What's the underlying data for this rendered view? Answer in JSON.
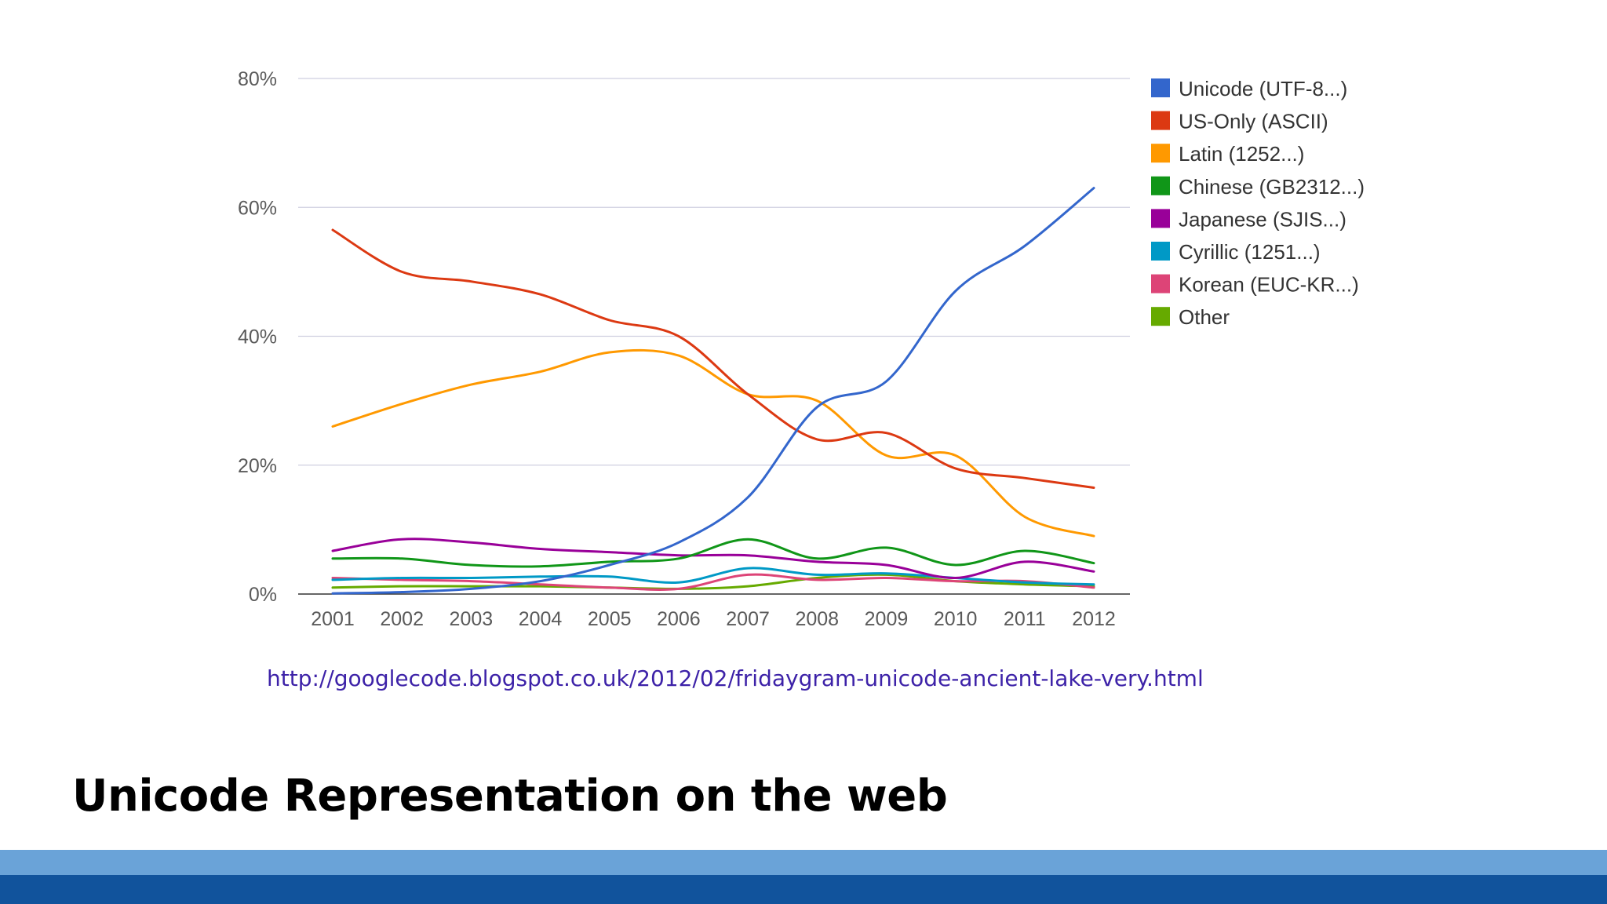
{
  "slide": {
    "title": "Unicode Representation on the web",
    "source_url": "http://googlecode.blogspot.co.uk/2012/02/fridaygram-unicode-ancient-lake-very.html",
    "colors": {
      "band_light": "#6aa3d8",
      "band_dark": "#11539c",
      "link": "#3d22a8"
    }
  },
  "chart_data": {
    "type": "line",
    "title": "",
    "xlabel": "",
    "ylabel": "",
    "categories": [
      "2001",
      "2002",
      "2003",
      "2004",
      "2005",
      "2006",
      "2007",
      "2008",
      "2009",
      "2010",
      "2011",
      "2012"
    ],
    "x": [
      2001,
      2002,
      2003,
      2004,
      2005,
      2006,
      2007,
      2008,
      2009,
      2010,
      2011,
      2012
    ],
    "ylim": [
      0,
      80
    ],
    "y_ticks": [
      0,
      20,
      40,
      60,
      80
    ],
    "y_tick_labels": [
      "0%",
      "20%",
      "40%",
      "60%",
      "80%"
    ],
    "grid": true,
    "legend_position": "right",
    "series": [
      {
        "name": "Unicode (UTF-8...)",
        "color": "#3366cc",
        "values": [
          0.1,
          0.3,
          0.8,
          2.0,
          4.5,
          8.0,
          15.0,
          29.0,
          33.0,
          47.0,
          54.0,
          63.0
        ]
      },
      {
        "name": "US-Only (ASCII)",
        "color": "#dc3912",
        "values": [
          56.5,
          50.0,
          48.5,
          46.5,
          42.5,
          40.0,
          31.0,
          24.0,
          25.0,
          19.5,
          18.0,
          16.5
        ]
      },
      {
        "name": "Latin (1252...)",
        "color": "#ff9900",
        "values": [
          26.0,
          29.5,
          32.5,
          34.5,
          37.5,
          37.0,
          31.0,
          30.0,
          21.5,
          21.5,
          12.0,
          9.0
        ]
      },
      {
        "name": "Chinese (GB2312...)",
        "color": "#109618",
        "values": [
          5.5,
          5.5,
          4.5,
          4.3,
          5.0,
          5.5,
          8.5,
          5.5,
          7.2,
          4.5,
          6.7,
          4.8
        ]
      },
      {
        "name": "Japanese (SJIS...)",
        "color": "#990099",
        "values": [
          6.7,
          8.5,
          8.0,
          7.0,
          6.5,
          6.0,
          6.0,
          5.0,
          4.5,
          2.5,
          5.0,
          3.5
        ]
      },
      {
        "name": "Cyrillic (1251...)",
        "color": "#0099c6",
        "values": [
          2.2,
          2.5,
          2.5,
          2.7,
          2.7,
          1.8,
          4.0,
          3.0,
          3.2,
          2.5,
          1.8,
          1.5
        ]
      },
      {
        "name": "Korean (EUC-KR...)",
        "color": "#dd4477",
        "values": [
          2.5,
          2.2,
          2.0,
          1.5,
          1.0,
          0.8,
          3.0,
          2.2,
          2.5,
          2.0,
          2.0,
          1.0
        ]
      },
      {
        "name": "Other",
        "color": "#66aa00",
        "values": [
          1.0,
          1.2,
          1.2,
          1.2,
          1.0,
          0.8,
          1.2,
          2.5,
          3.0,
          2.0,
          1.5,
          1.2
        ]
      }
    ]
  }
}
